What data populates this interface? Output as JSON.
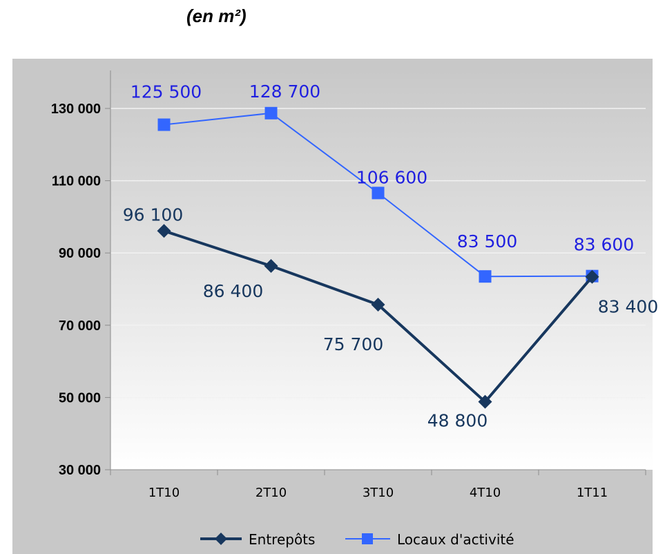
{
  "title": "(en m²)",
  "colors": {
    "entrepots": "#17375e",
    "locaux": "#3366ff",
    "entrepots_label": "#17375e",
    "locaux_label": "#1f1fe0"
  },
  "chart_data": {
    "type": "line",
    "title": "(en m²)",
    "xlabel": "",
    "ylabel": "",
    "categories": [
      "1T10",
      "2T10",
      "3T10",
      "4T10",
      "1T11"
    ],
    "ylim": [
      30000,
      130000
    ],
    "yticks": [
      30000,
      50000,
      70000,
      90000,
      110000,
      130000
    ],
    "ytick_labels": [
      "30 000",
      "50 000",
      "70 000",
      "90 000",
      "110 000",
      "130 000"
    ],
    "grid": true,
    "legend": "bottom",
    "series": [
      {
        "name": "Entrepôts",
        "values": [
          96100,
          86400,
          75700,
          48800,
          83400
        ],
        "labels": [
          "96 100",
          "86 400",
          "75 700",
          "48 800",
          "83 400"
        ],
        "marker": "diamond"
      },
      {
        "name": "Locaux d'activité",
        "values": [
          125500,
          128700,
          106600,
          83500,
          83600
        ],
        "labels": [
          "125 500",
          "128 700",
          "106 600",
          "83 500",
          "83 600"
        ],
        "marker": "square"
      }
    ]
  }
}
